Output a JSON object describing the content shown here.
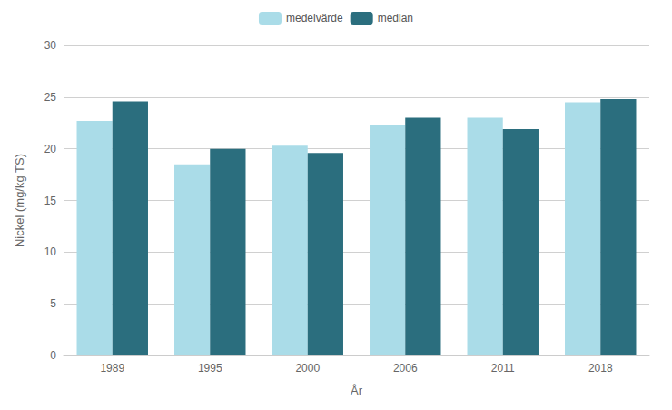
{
  "chart_data": {
    "type": "bar",
    "categories": [
      "1989",
      "1995",
      "2000",
      "2006",
      "2011",
      "2018"
    ],
    "series": [
      {
        "name": "medelvärde",
        "color": "#aadce8",
        "values": [
          22.7,
          18.5,
          20.3,
          22.3,
          23.0,
          24.5
        ]
      },
      {
        "name": "median",
        "color": "#2b6e7e",
        "values": [
          24.6,
          20.0,
          19.6,
          23.0,
          21.9,
          24.8
        ]
      }
    ],
    "xlabel": "År",
    "ylabel": "Nickel (mg/kg TS)",
    "ylim": [
      0,
      30
    ],
    "yticks": [
      0,
      5,
      10,
      15,
      20,
      25,
      30
    ],
    "grid": true,
    "legend": "top"
  }
}
